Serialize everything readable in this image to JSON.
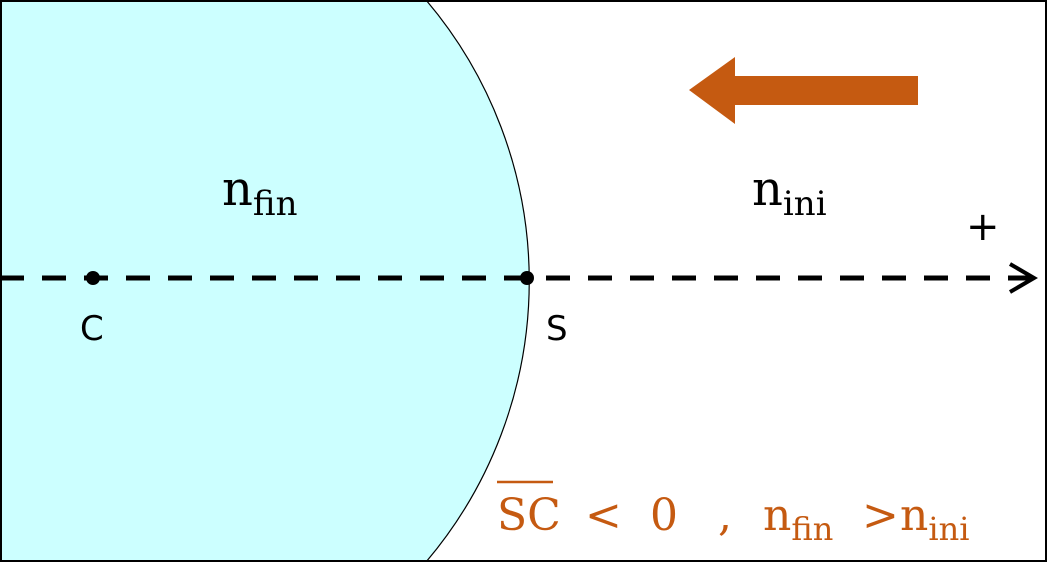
{
  "colors": {
    "medium_fill": "#CCFFFF",
    "accent": "#C55A11",
    "line": "#000000"
  },
  "labels": {
    "medium_final": {
      "base": "n",
      "sub": "fin"
    },
    "medium_initial": {
      "base": "n",
      "sub": "ini"
    },
    "center": "C",
    "vertex": "S",
    "positive_direction": "+"
  },
  "condition": {
    "segment": "SC",
    "relation": "<",
    "value": "0",
    "separator": ",",
    "left": {
      "base": "n",
      "sub": "fin"
    },
    "compare": ">",
    "right": {
      "base": "n",
      "sub": "ini"
    }
  },
  "icons": {
    "light_direction": "arrow-left-icon",
    "axis_direction": "arrow-right-icon"
  }
}
